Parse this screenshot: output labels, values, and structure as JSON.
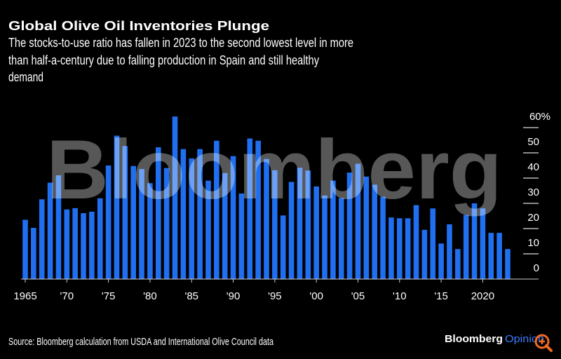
{
  "chart_data": {
    "type": "bar",
    "title": "Global Olive Oil Inventories Plunge",
    "subtitle_lines": [
      "The stocks-to-use ratio has fallen in 2023 to the second lowest level in more",
      "than half-a-century due to falling production in Spain and still healthy",
      "demand"
    ],
    "xlabel": "",
    "ylabel": "",
    "x": [
      1965,
      1966,
      1967,
      1968,
      1969,
      1970,
      1971,
      1972,
      1973,
      1974,
      1975,
      1976,
      1977,
      1978,
      1979,
      1980,
      1981,
      1982,
      1983,
      1984,
      1985,
      1986,
      1987,
      1988,
      1989,
      1990,
      1991,
      1992,
      1993,
      1994,
      1995,
      1996,
      1997,
      1998,
      1999,
      2000,
      2001,
      2002,
      2003,
      2004,
      2005,
      2006,
      2007,
      2008,
      2009,
      2010,
      2011,
      2012,
      2013,
      2014,
      2015,
      2016,
      2017,
      2018,
      2019,
      2020,
      2021,
      2022,
      2023
    ],
    "values": [
      23.5,
      20.3,
      31.6,
      38.2,
      41.1,
      27.6,
      28.1,
      26.1,
      26.7,
      32.0,
      45.0,
      56.8,
      52.7,
      44.8,
      43.6,
      38.0,
      52.2,
      44.0,
      64.4,
      51.5,
      47.8,
      51.5,
      39.0,
      54.8,
      42.0,
      48.7,
      33.9,
      55.7,
      54.8,
      47.6,
      43.1,
      25.2,
      38.5,
      44.1,
      43.0,
      36.7,
      33.1,
      39.0,
      32.1,
      42.2,
      45.7,
      40.6,
      37.4,
      32.6,
      24.4,
      24.1,
      24.1,
      29.3,
      19.5,
      28.0,
      14.1,
      21.7,
      11.9,
      25.4,
      30.0,
      28.0,
      18.3,
      18.3,
      11.9
    ],
    "ylim": [
      0,
      60
    ],
    "y_ticks": [
      {
        "value": 60,
        "label": "60%"
      },
      {
        "value": 50,
        "label": "50"
      },
      {
        "value": 40,
        "label": "40"
      },
      {
        "value": 30,
        "label": "30"
      },
      {
        "value": 20,
        "label": "20"
      },
      {
        "value": 10,
        "label": "10"
      },
      {
        "value": 0,
        "label": "0"
      }
    ],
    "x_ticks": [
      {
        "value": 1965,
        "label": "1965"
      },
      {
        "value": 1970,
        "label": "'70"
      },
      {
        "value": 1975,
        "label": "'75"
      },
      {
        "value": 1980,
        "label": "'80"
      },
      {
        "value": 1985,
        "label": "'85"
      },
      {
        "value": 1990,
        "label": "'90"
      },
      {
        "value": 1995,
        "label": "'95"
      },
      {
        "value": 2000,
        "label": "'00"
      },
      {
        "value": 2005,
        "label": "'05"
      },
      {
        "value": 2010,
        "label": "'10"
      },
      {
        "value": 2015,
        "label": "'15"
      },
      {
        "value": 2020,
        "label": "2020"
      }
    ],
    "y_axis_position": "right",
    "grid": false,
    "bar_color": "#1f6ff0"
  },
  "watermark": "Bloomberg",
  "source": "Source: Bloomberg calculation from USDA and International Olive Council data",
  "logo": {
    "brand": "Bloomberg",
    "section": "Opinion",
    "section_color": "#3d7bff"
  },
  "zoom_icon": {
    "name": "magnifier-plus-icon",
    "color": "#f26b21"
  }
}
